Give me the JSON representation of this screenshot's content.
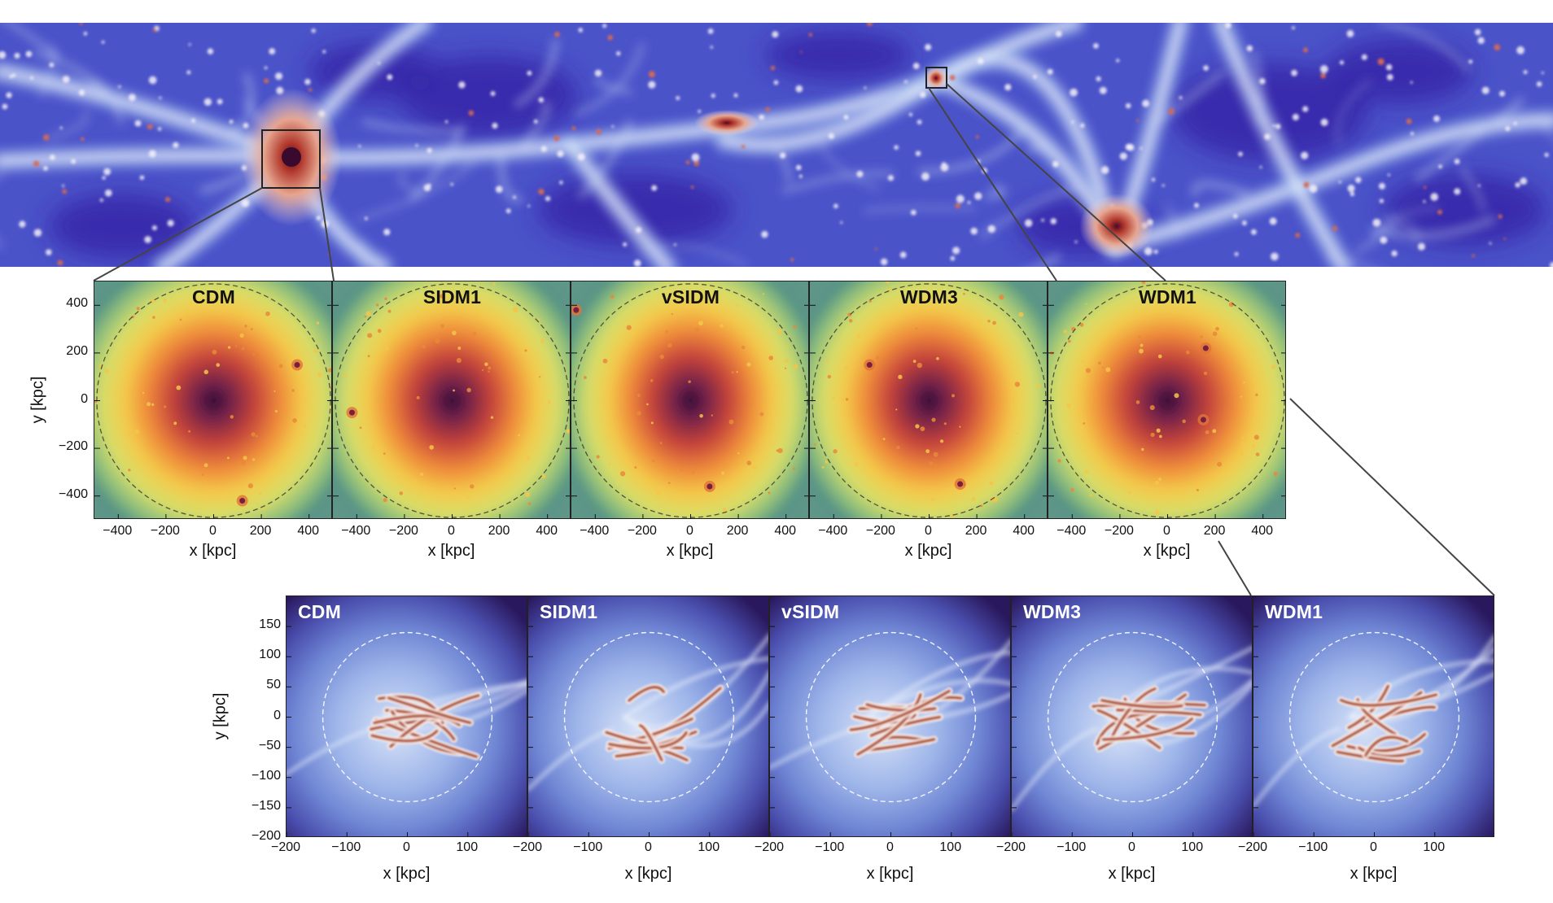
{
  "figure": {
    "top_strip": {
      "description_icon": "cosmic-web-density-map"
    },
    "dm_row": {
      "panels": [
        {
          "label": "CDM"
        },
        {
          "label": "SIDM1"
        },
        {
          "label": "vSIDM"
        },
        {
          "label": "WDM3"
        },
        {
          "label": "WDM1"
        }
      ],
      "xlabel": "x [kpc]",
      "ylabel": "y [kpc]",
      "xticks": [
        "−400",
        "−200",
        "0",
        "200",
        "400"
      ],
      "yticks": [
        "400",
        "200",
        "0",
        "−200",
        "−400"
      ]
    },
    "gas_row": {
      "panels": [
        {
          "label": "CDM"
        },
        {
          "label": "SIDM1"
        },
        {
          "label": "vSIDM"
        },
        {
          "label": "WDM3"
        },
        {
          "label": "WDM1"
        }
      ],
      "xlabel": "x [kpc]",
      "ylabel": "y [kpc]",
      "xticks": [
        "−200",
        "−100",
        "0",
        "100"
      ],
      "yticks": [
        "150",
        "100",
        "50",
        "0",
        "−50",
        "−100",
        "−150",
        "−200"
      ]
    },
    "colors": {
      "cosmic_bg": "#3f46c8",
      "dm_outer": "#3f7f86",
      "dm_core": "#3b0f3f",
      "gas_bg": "#7f9be0",
      "gas_filament": "#a0401f",
      "zoom_line": "#444444"
    }
  }
}
